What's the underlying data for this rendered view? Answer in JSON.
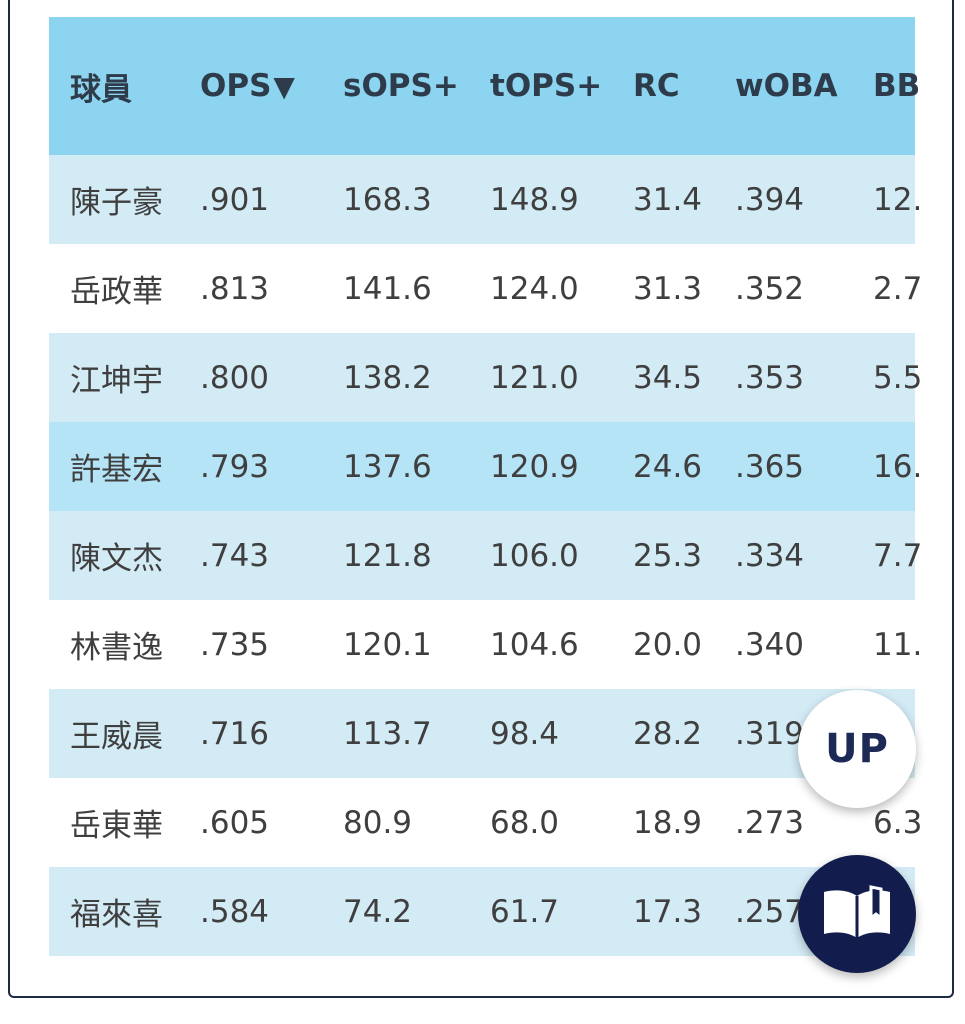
{
  "table": {
    "headers": [
      "球員",
      "OPS",
      "sOPS+",
      "tOPS+",
      "RC",
      "wOBA",
      "BB"
    ],
    "sort_indicator": "▼",
    "rows": [
      {
        "player": "陳子豪",
        "ops": ".901",
        "sops": "168.3",
        "tops": "148.9",
        "rc": "31.4",
        "woba": ".394",
        "bb": "12."
      },
      {
        "player": "岳政華",
        "ops": ".813",
        "sops": "141.6",
        "tops": "124.0",
        "rc": "31.3",
        "woba": ".352",
        "bb": "2.7"
      },
      {
        "player": "江坤宇",
        "ops": ".800",
        "sops": "138.2",
        "tops": "121.0",
        "rc": "34.5",
        "woba": ".353",
        "bb": "5.5"
      },
      {
        "player": "許基宏",
        "ops": ".793",
        "sops": "137.6",
        "tops": "120.9",
        "rc": "24.6",
        "woba": ".365",
        "bb": "16."
      },
      {
        "player": "陳文杰",
        "ops": ".743",
        "sops": "121.8",
        "tops": "106.0",
        "rc": "25.3",
        "woba": ".334",
        "bb": "7.7"
      },
      {
        "player": "林書逸",
        "ops": ".735",
        "sops": "120.1",
        "tops": "104.6",
        "rc": "20.0",
        "woba": ".340",
        "bb": "11."
      },
      {
        "player": "王威晨",
        "ops": ".716",
        "sops": "113.7",
        "tops": "98.4",
        "rc": "28.2",
        "woba": ".319",
        "bb": ""
      },
      {
        "player": "岳東華",
        "ops": ".605",
        "sops": "80.9",
        "tops": "68.0",
        "rc": "18.9",
        "woba": ".273",
        "bb": "6.3"
      },
      {
        "player": "福來喜",
        "ops": ".584",
        "sops": "74.2",
        "tops": "61.7",
        "rc": "17.3",
        "woba": ".257",
        "bb": ""
      }
    ]
  },
  "buttons": {
    "up_label": "UP",
    "book_icon": "open-book-icon"
  },
  "colors": {
    "header_bg": "#8dd4f1",
    "stripe_bg": "#d3ebf5",
    "highlight_bg": "#b5e4f6",
    "up_text": "#1c2a55",
    "book_bg": "#121d4d"
  }
}
